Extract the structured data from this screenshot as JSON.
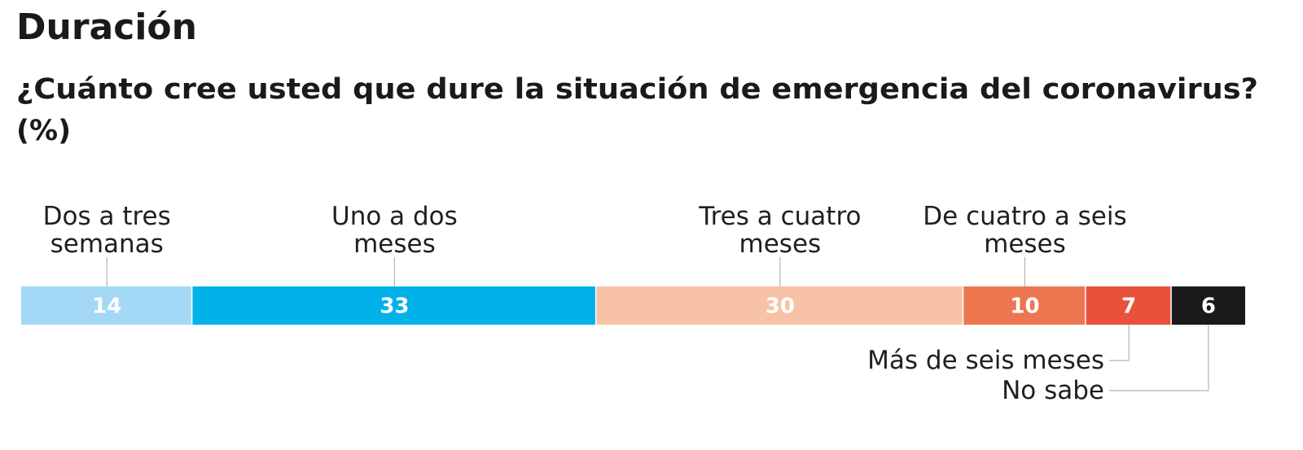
{
  "title": "Duración",
  "subtitle_line1": "¿Cuánto cree usted que dure la situación de emergencia del coronavirus?",
  "subtitle_line2": "(%)",
  "chart_data": {
    "type": "bar",
    "orientation": "horizontal-stacked-100",
    "title": "Duración",
    "subtitle": "¿Cuánto cree usted que dure la situación de emergencia del coronavirus? (%)",
    "unit": "%",
    "total": 100,
    "categories": [
      "Dos a tres semanas",
      "Uno a dos meses",
      "Tres a cuatro meses",
      "De cuatro a seis meses",
      "Más de seis meses",
      "No sabe"
    ],
    "values": [
      14,
      33,
      30,
      10,
      7,
      6
    ],
    "colors": [
      "#a3d9f7",
      "#00b1ea",
      "#f8c2a6",
      "#ed7650",
      "#e9513a",
      "#1a1a1a"
    ],
    "value_label_colors": [
      "#ffffff",
      "#ffffff",
      "#ffffff",
      "#ffffff",
      "#ffffff",
      "#ffffff"
    ],
    "label_lines": [
      [
        "Dos a tres",
        "semanas"
      ],
      [
        "Uno a dos",
        "meses"
      ],
      [
        "Tres a cuatro",
        "meses"
      ],
      [
        "De cuatro a seis",
        "meses"
      ],
      [
        "Más de seis meses"
      ],
      [
        "No sabe"
      ]
    ],
    "label_positions": [
      "above",
      "above",
      "above",
      "above",
      "below",
      "below"
    ]
  }
}
